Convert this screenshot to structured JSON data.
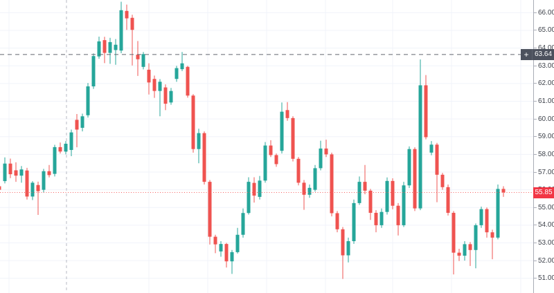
{
  "chart_data": {
    "type": "candlestick",
    "title": "",
    "xlabel": "",
    "ylabel": "",
    "legend": false,
    "grid": true,
    "y_axis": {
      "side": "right",
      "range": [
        50.7,
        66.75
      ],
      "tick_step": 1.0,
      "ticks": [
        "66.00",
        "65.00",
        "64.00",
        "63.00",
        "62.00",
        "61.00",
        "60.00",
        "59.00",
        "58.00",
        "57.00",
        "56.00",
        "55.00",
        "54.00",
        "53.00",
        "52.00",
        "51.00"
      ],
      "tick_values": [
        66,
        65,
        64,
        63,
        62,
        61,
        60,
        59,
        58,
        57,
        56,
        55,
        54,
        53,
        52,
        51
      ]
    },
    "x_axis": {
      "labels_visible": false,
      "session_break_index": 12
    },
    "price_lines": {
      "alert_line": {
        "price": 63.64,
        "label": "63.64",
        "style": "dashed",
        "color": "#62656e",
        "badge_color": "#4c515d",
        "has_plus_icon": true
      },
      "last_price_line": {
        "price": 55.85,
        "label": "55.85",
        "style": "dotted",
        "color": "#f55b5b",
        "badge_color": "#f23645"
      }
    },
    "colors": {
      "up": "#26a69a",
      "down": "#ef5350",
      "grid": "#f0f3fa",
      "background": "#ffffff",
      "session_break": "#b7bac3"
    },
    "series_columns": [
      "open",
      "high",
      "low",
      "close"
    ],
    "series": [
      [
        56.2,
        56.35,
        55.9,
        56.0
      ],
      [
        56.49,
        57.83,
        56.36,
        57.48
      ],
      [
        57.48,
        57.76,
        56.66,
        56.88
      ],
      [
        57.1,
        57.55,
        56.45,
        56.8
      ],
      [
        56.8,
        57.34,
        56.4,
        57.15
      ],
      [
        57.09,
        57.24,
        55.45,
        55.62
      ],
      [
        55.62,
        56.49,
        55.42,
        56.4
      ],
      [
        56.27,
        56.46,
        54.58,
        55.92
      ],
      [
        56.0,
        57.18,
        55.85,
        57.05
      ],
      [
        57.05,
        57.4,
        56.7,
        56.83
      ],
      [
        56.9,
        58.54,
        56.75,
        58.41
      ],
      [
        58.41,
        58.67,
        58.05,
        58.16
      ],
      [
        58.16,
        58.75,
        58.0,
        58.6
      ],
      [
        58.25,
        59.4,
        57.9,
        59.24
      ],
      [
        59.95,
        60.28,
        58.4,
        59.4
      ],
      [
        59.5,
        60.3,
        59.3,
        60.15
      ],
      [
        60.21,
        62.03,
        60.08,
        61.84
      ],
      [
        61.84,
        63.7,
        61.7,
        63.55
      ],
      [
        63.53,
        64.65,
        63.4,
        64.38
      ],
      [
        64.45,
        64.64,
        63.15,
        63.73
      ],
      [
        63.73,
        64.58,
        63.11,
        64.34
      ],
      [
        63.89,
        64.51,
        63.06,
        64.19
      ],
      [
        63.86,
        66.62,
        63.71,
        66.14
      ],
      [
        66.1,
        66.46,
        65.03,
        65.68
      ],
      [
        65.71,
        65.88,
        63.02,
        65.03
      ],
      [
        63.63,
        64.4,
        62.43,
        63.37
      ],
      [
        62.94,
        63.78,
        62.8,
        63.66
      ],
      [
        62.78,
        63.14,
        61.38,
        62.06
      ],
      [
        62.26,
        62.45,
        61.19,
        61.58
      ],
      [
        61.58,
        62.25,
        60.15,
        62.1
      ],
      [
        61.78,
        61.95,
        60.5,
        60.86
      ],
      [
        60.93,
        61.75,
        60.8,
        61.58
      ],
      [
        62.26,
        63.0,
        62.1,
        62.87
      ],
      [
        62.81,
        63.78,
        62.7,
        63.14
      ],
      [
        62.94,
        63.0,
        61.2,
        61.32
      ],
      [
        61.32,
        61.4,
        58.1,
        58.3
      ],
      [
        58.3,
        59.45,
        57.5,
        59.2
      ],
      [
        59.2,
        59.3,
        56.3,
        56.45
      ],
      [
        56.45,
        56.55,
        52.91,
        53.35
      ],
      [
        53.35,
        53.46,
        52.42,
        52.92
      ],
      [
        52.52,
        53.1,
        52.22,
        52.94
      ],
      [
        52.94,
        53.0,
        51.61,
        51.96
      ],
      [
        51.96,
        52.6,
        51.25,
        52.48
      ],
      [
        52.48,
        53.85,
        52.4,
        53.46
      ],
      [
        53.46,
        54.95,
        53.3,
        54.69
      ],
      [
        54.69,
        56.71,
        54.6,
        56.45
      ],
      [
        56.39,
        56.71,
        55.28,
        55.67
      ],
      [
        55.6,
        56.78,
        55.45,
        56.52
      ],
      [
        56.52,
        58.7,
        56.4,
        58.5
      ],
      [
        58.5,
        58.8,
        57.85,
        57.96
      ],
      [
        57.96,
        58.05,
        57.3,
        57.45
      ],
      [
        58.2,
        60.93,
        58.05,
        60.41
      ],
      [
        60.5,
        60.95,
        59.9,
        60.05
      ],
      [
        60.05,
        60.15,
        57.6,
        57.75
      ],
      [
        57.75,
        57.85,
        56.25,
        56.4
      ],
      [
        56.4,
        56.55,
        54.87,
        55.72
      ],
      [
        55.72,
        56.3,
        55.55,
        56.11
      ],
      [
        56.0,
        57.4,
        55.9,
        57.22
      ],
      [
        57.22,
        58.77,
        57.1,
        58.33
      ],
      [
        58.33,
        58.83,
        57.85,
        58.0
      ],
      [
        58.0,
        58.1,
        54.5,
        54.68
      ],
      [
        54.68,
        54.8,
        53.6,
        53.77
      ],
      [
        53.77,
        53.9,
        50.97,
        52.3
      ],
      [
        52.3,
        53.3,
        51.9,
        53.1
      ],
      [
        53.1,
        55.45,
        52.95,
        55.25
      ],
      [
        55.25,
        56.75,
        55.15,
        56.45
      ],
      [
        56.45,
        57.4,
        55.75,
        55.95
      ],
      [
        55.95,
        56.05,
        54.3,
        54.7
      ],
      [
        54.7,
        54.85,
        53.6,
        54.0
      ],
      [
        54.0,
        54.95,
        53.85,
        54.75
      ],
      [
        54.75,
        56.7,
        54.6,
        56.5
      ],
      [
        56.5,
        56.65,
        54.9,
        55.1
      ],
      [
        55.1,
        55.25,
        53.42,
        54.0
      ],
      [
        54.0,
        56.45,
        53.9,
        56.25
      ],
      [
        56.25,
        58.45,
        56.1,
        58.3
      ],
      [
        58.3,
        58.4,
        54.8,
        54.95
      ],
      [
        54.95,
        63.36,
        54.85,
        61.9
      ],
      [
        61.9,
        62.48,
        58.85,
        58.97
      ],
      [
        58.1,
        58.75,
        57.95,
        58.55
      ],
      [
        58.55,
        58.65,
        55.3,
        56.85
      ],
      [
        56.85,
        56.95,
        56.0,
        56.15
      ],
      [
        56.15,
        56.3,
        54.55,
        54.7
      ],
      [
        54.7,
        54.8,
        51.22,
        52.45
      ],
      [
        52.45,
        52.67,
        51.98,
        52.28
      ],
      [
        52.28,
        53.1,
        52.0,
        52.93
      ],
      [
        52.93,
        53.05,
        51.7,
        52.6
      ],
      [
        52.6,
        54.1,
        51.57,
        54.0
      ],
      [
        54.0,
        55.05,
        53.85,
        54.91
      ],
      [
        54.91,
        55.0,
        53.3,
        53.6
      ],
      [
        53.6,
        53.75,
        52.08,
        53.3
      ],
      [
        53.3,
        56.3,
        53.2,
        56.05
      ],
      [
        56.05,
        56.2,
        55.6,
        55.85
      ]
    ]
  }
}
